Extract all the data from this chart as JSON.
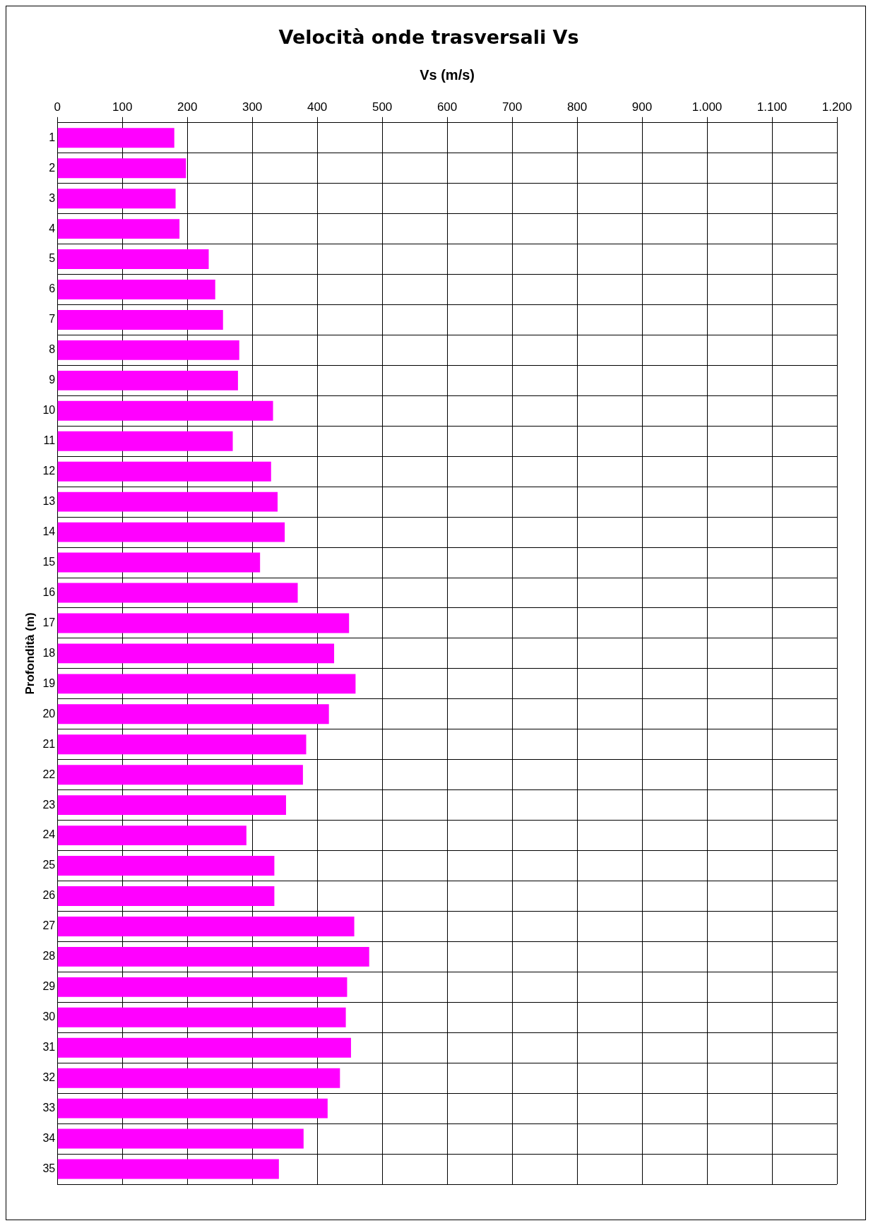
{
  "chart_data": {
    "type": "bar",
    "orientation": "horizontal",
    "title": "Velocità onde trasversali Vs",
    "xlabel": "Vs (m/s)",
    "ylabel": "Profondità (m)",
    "categories": [
      "1",
      "2",
      "3",
      "4",
      "5",
      "6",
      "7",
      "8",
      "9",
      "10",
      "11",
      "12",
      "13",
      "14",
      "15",
      "16",
      "17",
      "18",
      "19",
      "20",
      "21",
      "22",
      "23",
      "24",
      "25",
      "26",
      "27",
      "28",
      "29",
      "30",
      "31",
      "32",
      "33",
      "34",
      "35"
    ],
    "values": [
      180,
      198,
      182,
      188,
      233,
      243,
      255,
      280,
      278,
      332,
      270,
      329,
      339,
      350,
      312,
      370,
      449,
      426,
      459,
      418,
      383,
      378,
      352,
      291,
      334,
      334,
      457,
      480,
      446,
      444,
      452,
      435,
      416,
      379,
      341
    ],
    "color": "#ff00ff",
    "xlim": [
      0,
      1200
    ],
    "xticks": [
      0,
      100,
      200,
      300,
      400,
      500,
      600,
      700,
      800,
      900,
      {
        "value": 1000,
        "label": "1.000"
      },
      {
        "value": 1100,
        "label": "1.100"
      },
      {
        "value": 1200,
        "label": "1.200"
      }
    ],
    "grid": true,
    "legend": false
  }
}
